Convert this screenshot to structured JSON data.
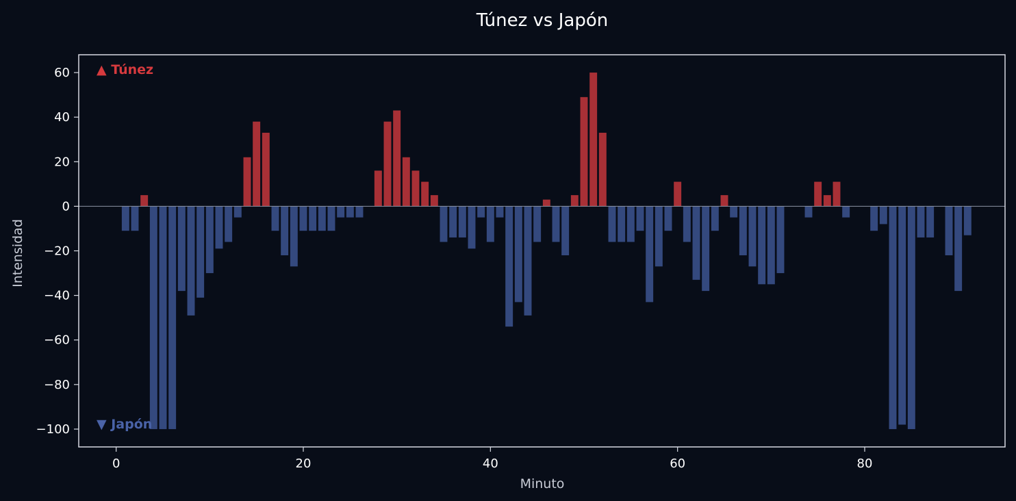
{
  "chart_data": {
    "type": "bar",
    "title": "Túnez vs Japón",
    "xlabel": "Minuto",
    "ylabel": "Intensidad",
    "xlim": [
      -4,
      95
    ],
    "ylim": [
      -108,
      68
    ],
    "xticks": [
      0,
      20,
      40,
      60,
      80
    ],
    "yticks": [
      60,
      40,
      20,
      0,
      -20,
      -40,
      -60,
      -80,
      -100
    ],
    "grid": false,
    "legend_position": "left-inside",
    "legend": {
      "positive": "▲ Túnez",
      "negative": "▼ Japón"
    },
    "colors": {
      "positive": "#a83036",
      "negative": "#34497e",
      "background": "#080d18",
      "frame": "#d7dae2",
      "zero_line": "#8c93a3"
    },
    "series": [
      {
        "name": "Túnez / Japón",
        "x": [
          0,
          1,
          2,
          3,
          4,
          5,
          6,
          7,
          8,
          9,
          10,
          11,
          12,
          13,
          14,
          15,
          16,
          17,
          18,
          19,
          20,
          21,
          22,
          23,
          24,
          25,
          26,
          27,
          28,
          29,
          30,
          31,
          32,
          33,
          34,
          35,
          36,
          37,
          38,
          39,
          40,
          41,
          42,
          43,
          44,
          45,
          46,
          47,
          48,
          49,
          50,
          51,
          52,
          53,
          54,
          55,
          56,
          57,
          58,
          59,
          60,
          61,
          62,
          63,
          64,
          65,
          66,
          67,
          68,
          69,
          70,
          71,
          72,
          73,
          74,
          75,
          76,
          77,
          78,
          79,
          80,
          81,
          82,
          83,
          84,
          85,
          86,
          87,
          88,
          89,
          90,
          91
        ],
        "values": [
          0,
          -11,
          -11,
          5,
          -100,
          -100,
          -100,
          -38,
          -49,
          -41,
          -30,
          -19,
          -16,
          -5,
          22,
          38,
          33,
          -11,
          -22,
          -27,
          -11,
          -11,
          -11,
          -11,
          -5,
          -5,
          -5,
          0,
          16,
          38,
          43,
          22,
          16,
          11,
          5,
          -16,
          -14,
          -14,
          -19,
          -5,
          -16,
          -5,
          -54,
          -43,
          -49,
          -16,
          3,
          -16,
          -22,
          5,
          49,
          60,
          33,
          -16,
          -16,
          -16,
          -11,
          -43,
          -27,
          -11,
          11,
          -16,
          -33,
          -38,
          -11,
          5,
          -5,
          -22,
          -27,
          -35,
          -35,
          -30,
          0,
          0,
          -5,
          11,
          5,
          11,
          -5,
          0,
          0,
          -11,
          -8,
          -100,
          -98,
          -100,
          -14,
          -14,
          0,
          -22,
          -38,
          -13
        ]
      }
    ]
  }
}
